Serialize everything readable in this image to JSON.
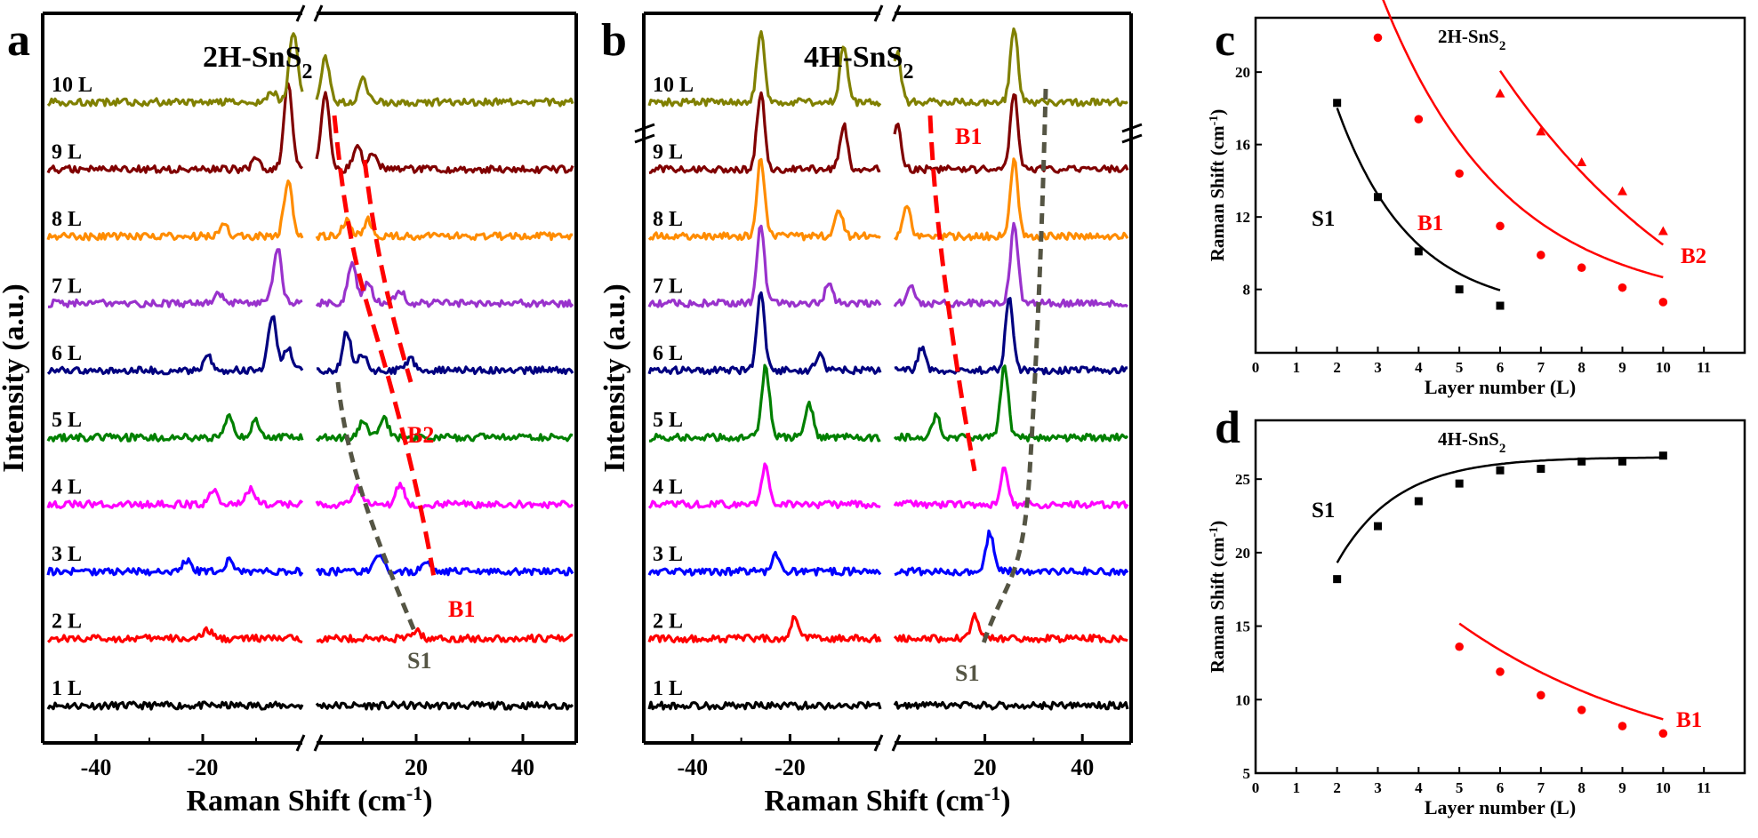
{
  "chart_data": [
    {
      "panel": "a",
      "type": "line",
      "title": "2H-SnS",
      "title_sub": "2",
      "xlabel": "Raman Shift (cm",
      "xlabel_sup": "-1",
      "xlabel_end": ")",
      "ylabel": "Intensity (a.u.)",
      "xticks": [
        "-40",
        "-20",
        "20",
        "40"
      ],
      "xlim": [
        -50,
        50
      ],
      "axis_break": "x",
      "series": [
        {
          "name": "1 L",
          "color": "#000000",
          "peaks": []
        },
        {
          "name": "2 L",
          "color": "#ff0000",
          "peaks": [
            [
              -19,
              0.15
            ],
            [
              20,
              0.15
            ]
          ]
        },
        {
          "name": "3 L",
          "color": "#0000ff",
          "peaks": [
            [
              -23,
              0.2
            ],
            [
              -15,
              0.2
            ],
            [
              13,
              0.3
            ],
            [
              22,
              0.2
            ]
          ]
        },
        {
          "name": "4 L",
          "color": "#ff00ff",
          "peaks": [
            [
              -18,
              0.3
            ],
            [
              -11,
              0.3
            ],
            [
              9,
              0.3
            ],
            [
              17,
              0.35
            ]
          ]
        },
        {
          "name": "5 L",
          "color": "#008000",
          "peaks": [
            [
              -15,
              0.4
            ],
            [
              -10,
              0.3
            ],
            [
              10,
              0.3
            ],
            [
              14,
              0.35
            ]
          ]
        },
        {
          "name": "6 L",
          "color": "#000080",
          "peaks": [
            [
              -19,
              0.25
            ],
            [
              -7,
              1.0
            ],
            [
              -4,
              0.4
            ],
            [
              7,
              0.7
            ],
            [
              10,
              0.3
            ],
            [
              19,
              0.2
            ]
          ]
        },
        {
          "name": "7 L",
          "color": "#9932cc",
          "peaks": [
            [
              -17,
              0.2
            ],
            [
              -6,
              1.0
            ],
            [
              8,
              0.7
            ],
            [
              11,
              0.4
            ],
            [
              17,
              0.25
            ]
          ]
        },
        {
          "name": "8 L",
          "color": "#ff8c00",
          "peaks": [
            [
              -16,
              0.2
            ],
            [
              -4,
              1.0
            ],
            [
              7,
              0.3
            ],
            [
              11,
              0.3
            ]
          ]
        },
        {
          "name": "9 L",
          "color": "#800000",
          "peaks": [
            [
              -10,
              0.2
            ],
            [
              -4,
              1.6
            ],
            [
              3,
              1.4
            ],
            [
              9,
              0.4
            ],
            [
              12,
              0.3
            ]
          ]
        },
        {
          "name": "10 L",
          "color": "#808000",
          "peaks": [
            [
              -7,
              0.2
            ],
            [
              -3,
              1.3
            ],
            [
              3,
              0.8
            ],
            [
              10,
              0.4
            ]
          ]
        }
      ],
      "annotations": [
        "B2",
        "B1",
        "S1"
      ]
    },
    {
      "panel": "b",
      "type": "line",
      "title": "4H-SnS",
      "title_sub": "2",
      "xlabel": "Raman Shift (cm",
      "xlabel_sup": "-1",
      "xlabel_end": ")",
      "ylabel": "Intensity (a.u.)",
      "xticks": [
        "-40",
        "-20",
        "20",
        "40"
      ],
      "xlim": [
        -50,
        50
      ],
      "axis_break": "x",
      "series": [
        {
          "name": "1 L",
          "color": "#000000",
          "peaks": []
        },
        {
          "name": "2 L",
          "color": "#ff0000",
          "peaks": [
            [
              -19,
              0.4
            ],
            [
              18,
              0.4
            ]
          ]
        },
        {
          "name": "3 L",
          "color": "#0000ff",
          "peaks": [
            [
              -23,
              0.3
            ],
            [
              21,
              0.7
            ]
          ]
        },
        {
          "name": "4 L",
          "color": "#ff00ff",
          "peaks": [
            [
              -25,
              0.7
            ],
            [
              24,
              0.7
            ]
          ]
        },
        {
          "name": "5 L",
          "color": "#008000",
          "peaks": [
            [
              -25,
              1.3
            ],
            [
              -16,
              0.6
            ],
            [
              10,
              0.4
            ],
            [
              24,
              1.3
            ]
          ]
        },
        {
          "name": "6 L",
          "color": "#000080",
          "peaks": [
            [
              -26,
              1.4
            ],
            [
              -14,
              0.3
            ],
            [
              7,
              0.4
            ],
            [
              25,
              1.3
            ]
          ]
        },
        {
          "name": "7 L",
          "color": "#9932cc",
          "peaks": [
            [
              -26,
              1.4
            ],
            [
              -12,
              0.4
            ],
            [
              5,
              0.3
            ],
            [
              26,
              1.4
            ]
          ]
        },
        {
          "name": "8 L",
          "color": "#ff8c00",
          "peaks": [
            [
              -26,
              1.4
            ],
            [
              -10,
              0.5
            ],
            [
              4,
              0.5
            ],
            [
              26,
              1.4
            ]
          ]
        },
        {
          "name": "9 L",
          "color": "#800000",
          "peaks": [
            [
              -26,
              1.4
            ],
            [
              -9,
              0.8
            ],
            [
              2,
              0.8
            ],
            [
              26,
              1.4
            ]
          ]
        },
        {
          "name": "10 L",
          "color": "#808000",
          "peaks": [
            [
              -26,
              1.3
            ],
            [
              -9,
              1.0
            ],
            [
              2,
              0.9
            ],
            [
              26,
              1.3
            ]
          ]
        }
      ],
      "annotations": [
        "B1",
        "S1"
      ]
    },
    {
      "panel": "c",
      "type": "scatter",
      "title": "2H-SnS",
      "title_sub": "2",
      "xlabel": "Layer number (L)",
      "ylabel": "Raman Shift (cm",
      "ylabel_sup": "-1",
      "ylabel_end": ")",
      "xlim": [
        0,
        12
      ],
      "ylim": [
        4.5,
        23
      ],
      "xticks": [
        0,
        1,
        2,
        3,
        4,
        5,
        6,
        7,
        8,
        9,
        10,
        11
      ],
      "yticks": [
        8,
        12,
        16,
        20
      ],
      "series": [
        {
          "name": "S1",
          "color": "#000000",
          "marker": "square",
          "x": [
            2,
            3,
            4,
            5,
            6
          ],
          "y": [
            18.3,
            13.1,
            10.1,
            8.0,
            7.1
          ]
        },
        {
          "name": "B1",
          "color": "#ff0000",
          "marker": "circle",
          "x": [
            3,
            4,
            5,
            6,
            7,
            8,
            9,
            10
          ],
          "y": [
            21.9,
            17.4,
            14.4,
            11.5,
            9.9,
            9.2,
            8.1,
            7.3
          ]
        },
        {
          "name": "B2",
          "color": "#ff0000",
          "marker": "triangle",
          "x": [
            6,
            7,
            8,
            9,
            10
          ],
          "y": [
            18.8,
            16.7,
            15.0,
            13.4,
            11.2
          ]
        }
      ]
    },
    {
      "panel": "d",
      "type": "scatter",
      "title": "4H-SnS",
      "title_sub": "2",
      "xlabel": "Layer number (L)",
      "ylabel": "Raman Shift (cm",
      "ylabel_sup": "-1",
      "ylabel_end": ")",
      "xlim": [
        0,
        12
      ],
      "ylim": [
        5,
        29
      ],
      "xticks": [
        0,
        1,
        2,
        3,
        4,
        5,
        6,
        7,
        8,
        9,
        10,
        11
      ],
      "yticks": [
        5,
        10,
        15,
        20,
        25
      ],
      "series": [
        {
          "name": "S1",
          "color": "#000000",
          "marker": "square",
          "x": [
            2,
            3,
            4,
            5,
            6,
            7,
            8,
            9,
            10
          ],
          "y": [
            18.2,
            21.8,
            23.5,
            24.7,
            25.6,
            25.7,
            26.2,
            26.2,
            26.6
          ]
        },
        {
          "name": "B1",
          "color": "#ff0000",
          "marker": "circle",
          "x": [
            5,
            6,
            7,
            8,
            9,
            10
          ],
          "y": [
            13.6,
            11.9,
            10.3,
            9.3,
            8.2,
            7.7
          ]
        }
      ]
    }
  ],
  "panel_letters": [
    "a",
    "b",
    "c",
    "d"
  ]
}
